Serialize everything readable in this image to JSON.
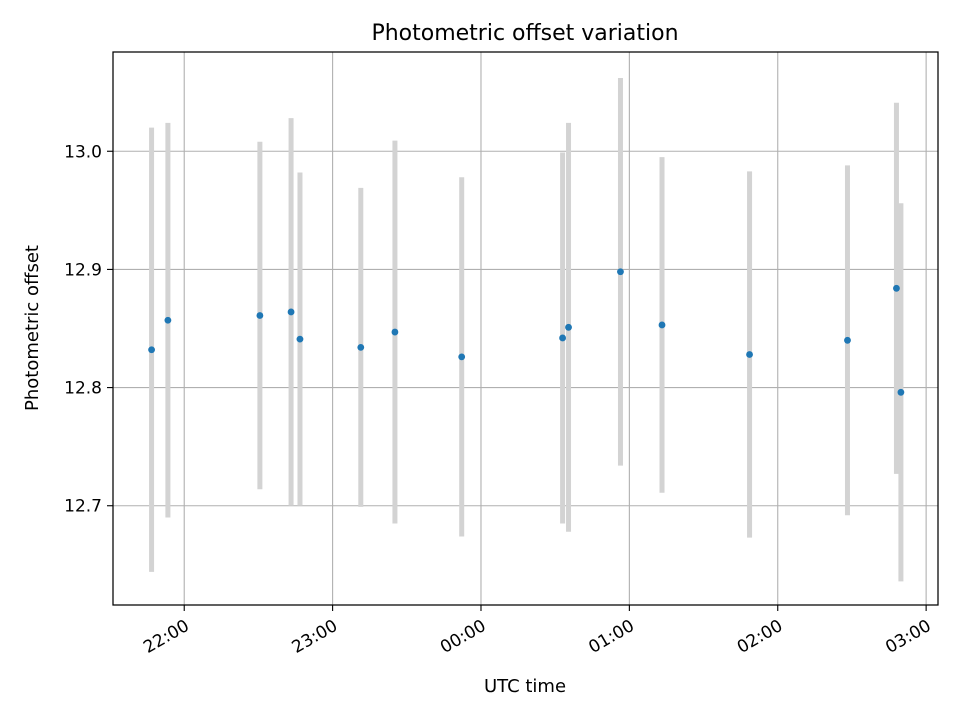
{
  "chart_data": {
    "type": "scatter",
    "title": "Photometric offset variation",
    "xlabel": "UTC time",
    "ylabel": "Photometric offset",
    "x_axis": {
      "kind": "time",
      "unit": "hours_since_21:00",
      "range": [
        0.52,
        6.08
      ],
      "ticks": [
        {
          "value": 1,
          "label": "22:00"
        },
        {
          "value": 2,
          "label": "23:00"
        },
        {
          "value": 3,
          "label": "00:00"
        },
        {
          "value": 4,
          "label": "01:00"
        },
        {
          "value": 5,
          "label": "02:00"
        },
        {
          "value": 6,
          "label": "03:00"
        }
      ]
    },
    "y_axis": {
      "range": [
        12.616,
        13.084
      ],
      "ticks": [
        {
          "value": 12.7,
          "label": "12.7"
        },
        {
          "value": 12.8,
          "label": "12.8"
        },
        {
          "value": 12.9,
          "label": "12.9"
        },
        {
          "value": 13.0,
          "label": "13.0"
        }
      ]
    },
    "grid": true,
    "colors": {
      "point": "#1f77b4",
      "errorbar": "#d3d3d3",
      "grid": "#b0b0b0"
    },
    "points": [
      {
        "time": "21:47",
        "x": 0.78,
        "y": 12.832,
        "err": 0.188
      },
      {
        "time": "21:54",
        "x": 0.89,
        "y": 12.857,
        "err": 0.167
      },
      {
        "time": "22:30",
        "x": 1.51,
        "y": 12.861,
        "err": 0.147
      },
      {
        "time": "22:43",
        "x": 1.72,
        "y": 12.864,
        "err": 0.164
      },
      {
        "time": "22:46",
        "x": 1.78,
        "y": 12.841,
        "err": 0.141
      },
      {
        "time": "23:12",
        "x": 2.19,
        "y": 12.834,
        "err": 0.135
      },
      {
        "time": "23:26",
        "x": 2.42,
        "y": 12.847,
        "err": 0.162
      },
      {
        "time": "23:53",
        "x": 2.87,
        "y": 12.826,
        "err": 0.152
      },
      {
        "time": "00:33",
        "x": 3.55,
        "y": 12.842,
        "err": 0.157
      },
      {
        "time": "00:36",
        "x": 3.59,
        "y": 12.851,
        "err": 0.173
      },
      {
        "time": "00:56",
        "x": 3.94,
        "y": 12.898,
        "err": 0.164
      },
      {
        "time": "01:13",
        "x": 4.22,
        "y": 12.853,
        "err": 0.142
      },
      {
        "time": "01:49",
        "x": 4.81,
        "y": 12.828,
        "err": 0.155
      },
      {
        "time": "02:29",
        "x": 5.47,
        "y": 12.84,
        "err": 0.148
      },
      {
        "time": "02:48",
        "x": 5.8,
        "y": 12.884,
        "err": 0.157
      },
      {
        "time": "02:50",
        "x": 5.83,
        "y": 12.796,
        "err": 0.16
      }
    ]
  }
}
